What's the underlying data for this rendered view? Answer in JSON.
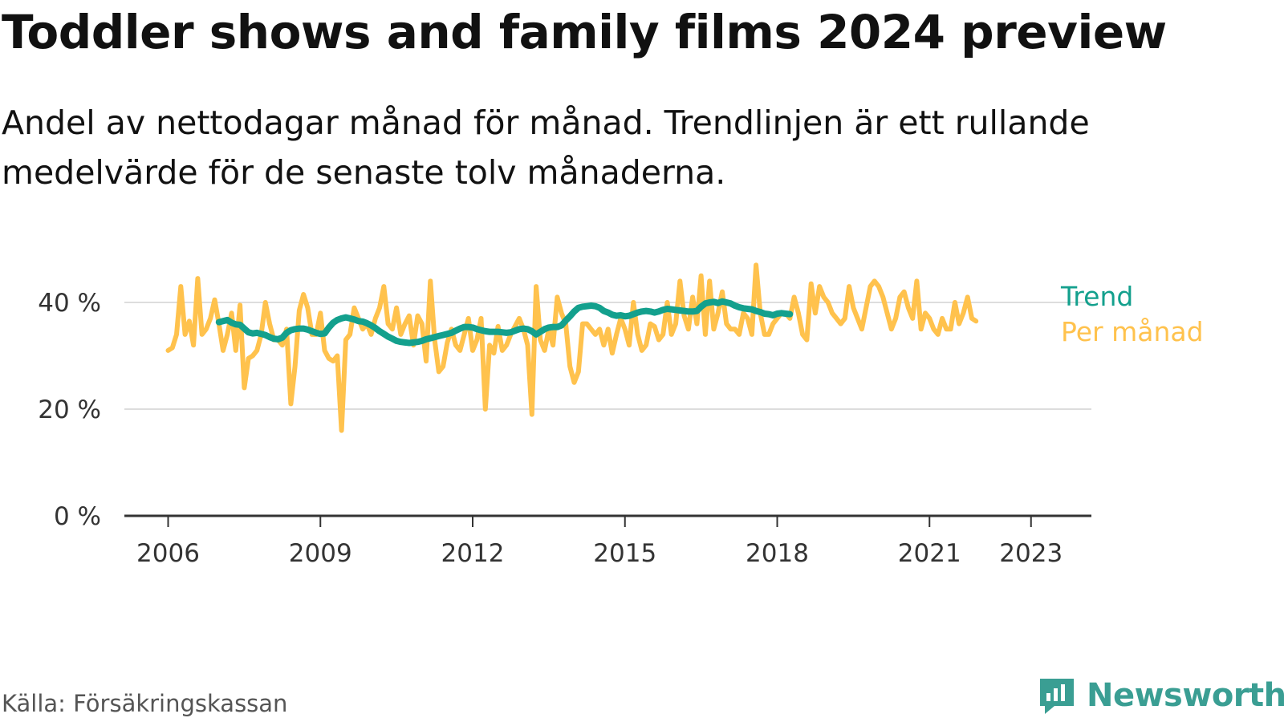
{
  "title": "Toddler shows and family films 2024 preview",
  "subtitle": "Andel av nettodagar månad för månad. Trendlinjen är ett rullande medelvärde för de senaste tolv månaderna.",
  "source": "Källa: Försäkringskassan",
  "brand": {
    "name": "Newsworthy",
    "icon": "newsworthy-logo-icon"
  },
  "colors": {
    "monthly": "#ffc24d",
    "trend": "#13a08d",
    "grid": "#dddddd",
    "axis": "#333333",
    "brand": "#3a9e93"
  },
  "chart_data": {
    "type": "line",
    "title": "Toddler shows and family films 2024 preview",
    "subtitle": "Andel av nettodagar månad för månad. Trendlinjen är ett rullande medelvärde för de senaste tolv månaderna.",
    "xlabel": "",
    "ylabel": "",
    "x_range": [
      "2006-01",
      "2024-01"
    ],
    "ylim": [
      0,
      40
    ],
    "y_ticks": [
      0,
      20,
      40
    ],
    "y_tick_labels": [
      "0 %",
      "20 %",
      "40 %"
    ],
    "x_ticks": [
      2006,
      2009,
      2012,
      2015,
      2018,
      2021,
      2023
    ],
    "x_tick_labels": [
      "2006",
      "2009",
      "2012",
      "2015",
      "2018",
      "2021",
      "2023"
    ],
    "grid": true,
    "legend": "direct labels at right end of lines",
    "series": [
      {
        "name": "Per månad",
        "start": "2006-01",
        "frequency": "monthly",
        "values": [
          31,
          31.5,
          34,
          43,
          34,
          36.5,
          32,
          44.5,
          34,
          35,
          37,
          40.5,
          36,
          31,
          34,
          38,
          31,
          39.5,
          24,
          29.5,
          30,
          31,
          34,
          40,
          36,
          33,
          33,
          32,
          35,
          21,
          28,
          38.5,
          41.5,
          39,
          34,
          34,
          38,
          31,
          29.5,
          29,
          30,
          16,
          33,
          34,
          39,
          37,
          35,
          36,
          34,
          37,
          39,
          43,
          36,
          35,
          39,
          34,
          36,
          37.5,
          32,
          37.5,
          36,
          29,
          44,
          33,
          27,
          28,
          32.5,
          35,
          32,
          31,
          34,
          37,
          31,
          33,
          37,
          20,
          32,
          30.5,
          35.5,
          31,
          32,
          34,
          35.5,
          37,
          35,
          32,
          19,
          43,
          33,
          31,
          35,
          32,
          41,
          38,
          36,
          28,
          25,
          27,
          36,
          36,
          35,
          34,
          35,
          32,
          35,
          30.5,
          34,
          37,
          35,
          32,
          40,
          34,
          31,
          32,
          36,
          35.5,
          33,
          34,
          40,
          34,
          36,
          44,
          37.5,
          35,
          41,
          36,
          45,
          34,
          44,
          35,
          38,
          42,
          36,
          35,
          35,
          34,
          38,
          37,
          34,
          47,
          38,
          34,
          34,
          36,
          37,
          38,
          38,
          37,
          41,
          38,
          34,
          33,
          43.5,
          38,
          43,
          41,
          40,
          38,
          37,
          36,
          37,
          43,
          39,
          37,
          35,
          39,
          43,
          44,
          43,
          41,
          38,
          35,
          37,
          41,
          42,
          39,
          37,
          44,
          35,
          38,
          37,
          35,
          34,
          37,
          35,
          35,
          40,
          36,
          38,
          41,
          37,
          36.5
        ]
      },
      {
        "name": "Trend",
        "start": "2007-01",
        "frequency": "monthly",
        "values": [
          36.3,
          36.5,
          36.7,
          36.2,
          35.9,
          35.8,
          35.1,
          34.4,
          34.2,
          34.3,
          34.1,
          33.9,
          33.5,
          33.2,
          33.1,
          33.4,
          34.3,
          34.8,
          35.0,
          35.1,
          35.1,
          34.9,
          34.6,
          34.3,
          34.1,
          34.2,
          35.3,
          36.2,
          36.7,
          37.0,
          37.2,
          37.0,
          36.8,
          36.5,
          36.4,
          36.1,
          35.7,
          35.2,
          34.6,
          34.1,
          33.6,
          33.2,
          32.8,
          32.6,
          32.5,
          32.4,
          32.5,
          32.6,
          32.8,
          33.1,
          33.3,
          33.5,
          33.7,
          33.9,
          34.1,
          34.3,
          34.7,
          35.1,
          35.4,
          35.4,
          35.3,
          35.0,
          34.8,
          34.6,
          34.5,
          34.5,
          34.5,
          34.4,
          34.3,
          34.4,
          34.7,
          35.0,
          35.1,
          35.0,
          34.6,
          34.0,
          34.5,
          35.0,
          35.3,
          35.4,
          35.4,
          35.7,
          36.6,
          37.4,
          38.3,
          39.0,
          39.2,
          39.3,
          39.4,
          39.3,
          39.0,
          38.4,
          38.1,
          37.7,
          37.5,
          37.6,
          37.4,
          37.5,
          37.8,
          38.1,
          38.3,
          38.4,
          38.3,
          38.1,
          38.3,
          38.6,
          38.8,
          38.7,
          38.6,
          38.5,
          38.4,
          38.3,
          38.3,
          38.4,
          39.2,
          39.8,
          40.0,
          40.1,
          39.9,
          40.2,
          40.0,
          39.8,
          39.4,
          39.1,
          38.9,
          38.8,
          38.7,
          38.4,
          38.2,
          37.9,
          37.8,
          37.6,
          37.9,
          38.0,
          37.9,
          37.8
        ]
      }
    ]
  }
}
